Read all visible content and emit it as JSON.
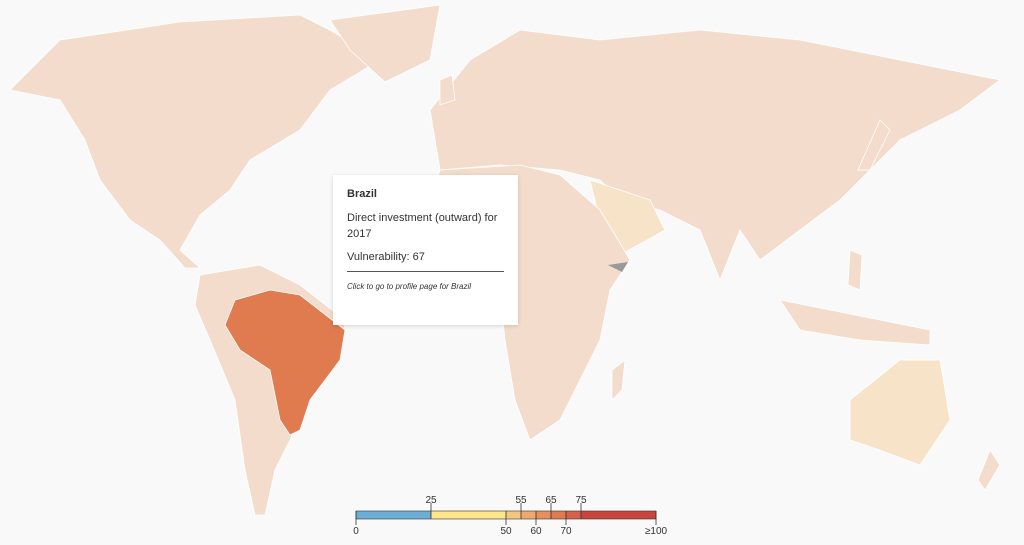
{
  "tooltip": {
    "country": "Brazil",
    "indicator": "Direct investment (outward) for 2017",
    "vulnerability_label": "Vulnerability:",
    "vulnerability": 67,
    "link": "Click to go to profile page for Brazil"
  },
  "legend": {
    "edges": [
      0,
      25,
      50,
      55,
      60,
      65,
      70,
      75,
      100
    ],
    "colors": [
      "#6baed6",
      "#fde68a",
      "#f5c77e",
      "#eeaa6e",
      "#e78f5d",
      "#e07a4f",
      "#d6614a",
      "#c8453d"
    ],
    "ticks_top": [
      25,
      55,
      65,
      75
    ],
    "ticks_bottom": [
      0,
      50,
      60,
      70,
      {
        "value": 100,
        "label": "≥100"
      }
    ]
  }
}
